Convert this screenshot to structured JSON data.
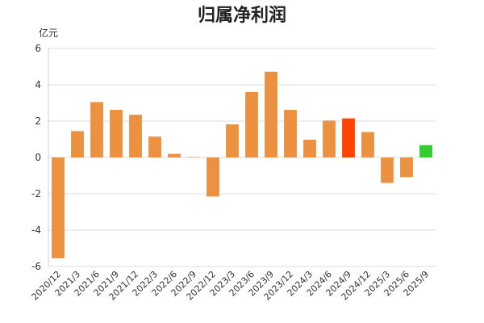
{
  "chart_data": {
    "type": "bar",
    "title": "归属净利润",
    "unit_label": "亿元",
    "xlabel": "",
    "ylabel": "",
    "ylim": [
      -6,
      6
    ],
    "yticks": [
      6,
      4,
      2,
      0,
      -2,
      -4,
      -6
    ],
    "grid": true,
    "legend": "none",
    "categories": [
      "2020/12",
      "2021/3",
      "2021/6",
      "2021/9",
      "2021/12",
      "2022/3",
      "2022/6",
      "2022/9",
      "2022/12",
      "2023/3",
      "2023/6",
      "2023/9",
      "2023/12",
      "2024/3",
      "2024/6",
      "2024/9",
      "2024/12",
      "2025/3",
      "2025/6",
      "2025/9"
    ],
    "values": [
      -5.55,
      1.45,
      3.05,
      2.62,
      2.35,
      1.15,
      0.2,
      0.02,
      -2.15,
      1.82,
      3.6,
      4.72,
      2.62,
      0.98,
      2.03,
      2.15,
      1.4,
      -1.4,
      -1.08,
      0.68
    ],
    "colors": {
      "default": "#EC913F",
      "highlight": "#FF4500",
      "latest": "#33CC33",
      "grid": "#dddddd"
    },
    "highlight_category": "2024/9",
    "latest_category": "2025/9"
  }
}
